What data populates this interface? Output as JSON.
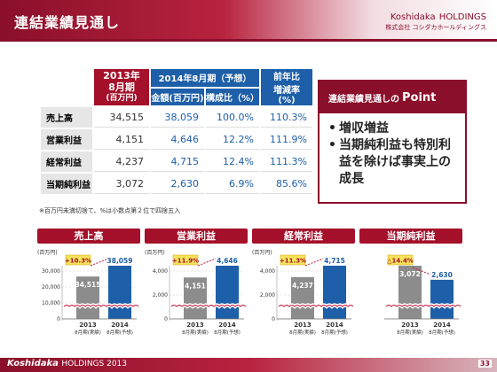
{
  "header": {
    "title": "連結業績見通し",
    "logo_main": "Koshidaka",
    "logo_main_suffix": "HOLDINGS",
    "logo_sub": "株式会社 コシダカホールディングス"
  },
  "table": {
    "head_2013": [
      "2013年",
      "8月期",
      "(百万円)"
    ],
    "head_2014": "2014年8月期（予想）",
    "head_amount": "金額(百万円)",
    "head_ratio": "構成比（%）",
    "head_yoy": [
      "前年比",
      "増減率",
      "(%)"
    ],
    "rows": [
      {
        "label": "売上高",
        "v2013": "34,515",
        "amount": "38,059",
        "ratio": "100.0%",
        "yoy": "110.3%"
      },
      {
        "label": "営業利益",
        "v2013": "4,151",
        "amount": "4,646",
        "ratio": "12.2%",
        "yoy": "111.9%"
      },
      {
        "label": "経常利益",
        "v2013": "4,237",
        "amount": "4,715",
        "ratio": "12.4%",
        "yoy": "111.3%"
      },
      {
        "label": "当期純利益",
        "v2013": "3,072",
        "amount": "2,630",
        "ratio": "6.9%",
        "yoy": "85.6%"
      }
    ]
  },
  "note": "※百万円未満切捨て、%は小数点第２位で四捨五入",
  "point": {
    "head_prefix": "連結業績見通しの",
    "head_big": "Point",
    "bullets": [
      "増収増益",
      "当期純利益も特別利益を除けば事実上の成長"
    ]
  },
  "chart_data": [
    {
      "type": "bar",
      "title": "売上高",
      "unit": "(百万円)",
      "categories": [
        "2013 8月期(実績)",
        "2014 8月期(予想)"
      ],
      "values": [
        34515,
        38059
      ],
      "labels": [
        "34,515",
        "38,059"
      ],
      "yticks": [
        "30,000",
        "20,000",
        "10,000",
        "0"
      ],
      "change": "+10.3%"
    },
    {
      "type": "bar",
      "title": "営業利益",
      "unit": "(百万円)",
      "categories": [
        "2013 8月期(実績)",
        "2014 8月期(予想)"
      ],
      "values": [
        4151,
        4646
      ],
      "labels": [
        "4,151",
        "4,646"
      ],
      "yticks": [
        "4,000",
        "2,000",
        "0"
      ],
      "change": "+11.9%"
    },
    {
      "type": "bar",
      "title": "経常利益",
      "unit": "(百万円)",
      "categories": [
        "2013 8月期(実績)",
        "2014 8月期(予想)"
      ],
      "values": [
        4237,
        4715
      ],
      "labels": [
        "4,237",
        "4,715"
      ],
      "yticks": [
        "4,000",
        "2,000",
        "0"
      ],
      "change": "+11.3%"
    },
    {
      "type": "bar",
      "title": "当期純利益",
      "unit": "",
      "categories": [
        "2013 8月期(実績)",
        "2014 8月期(予想)"
      ],
      "values": [
        3072,
        2630
      ],
      "labels": [
        "3,072",
        "2,630"
      ],
      "yticks": [],
      "change": "△14.4%"
    }
  ],
  "footer": {
    "brand": "Koshidaka",
    "brand_suffix": "HOLDINGS 2013",
    "page": "33"
  },
  "colors": {
    "brand_red": "#a5102a",
    "blue": "#1d5fa8",
    "gray_bar": "#8c8c8c"
  }
}
